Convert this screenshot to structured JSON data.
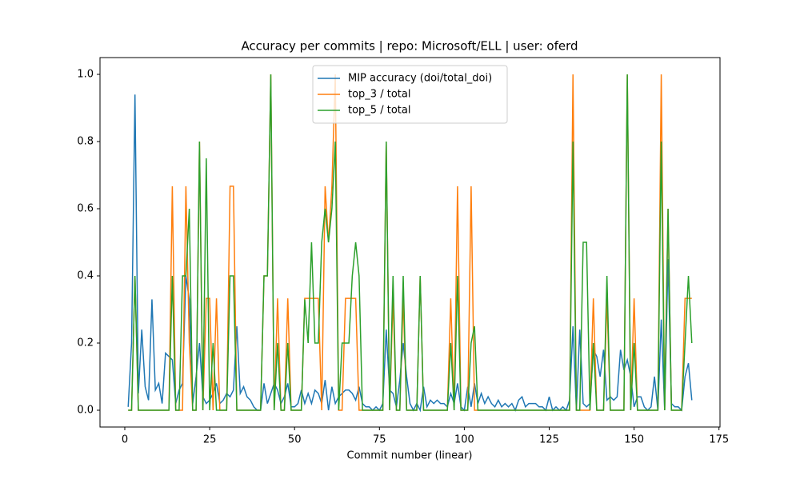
{
  "chart_data": {
    "type": "line",
    "title": "Accuracy per commits | repo: Microsoft/ELL | user: oferd",
    "xlabel": "Commit number (linear)",
    "xlim": [
      -7.3,
      175.3
    ],
    "xticks": [
      0,
      25,
      50,
      75,
      100,
      125,
      150,
      175
    ],
    "ylim": [
      -0.05,
      1.05
    ],
    "yticks": [
      {
        "value": 0,
        "label": "0.0"
      },
      0.2,
      0.4,
      0.6,
      0.8,
      {
        "value": 1,
        "label": "1.0"
      }
    ],
    "grid": false,
    "legend": "upper center",
    "x": [
      1,
      2,
      3,
      4,
      5,
      6,
      7,
      8,
      9,
      10,
      11,
      12,
      13,
      14,
      15,
      16,
      17,
      18,
      19,
      20,
      21,
      22,
      23,
      24,
      25,
      26,
      27,
      28,
      29,
      30,
      31,
      32,
      33,
      34,
      35,
      36,
      37,
      38,
      39,
      40,
      41,
      42,
      43,
      44,
      45,
      46,
      47,
      48,
      49,
      50,
      51,
      52,
      53,
      54,
      55,
      56,
      57,
      58,
      59,
      60,
      61,
      62,
      63,
      64,
      65,
      66,
      67,
      68,
      69,
      70,
      71,
      72,
      73,
      74,
      75,
      76,
      77,
      78,
      79,
      80,
      81,
      82,
      83,
      84,
      85,
      86,
      87,
      88,
      89,
      90,
      91,
      92,
      93,
      94,
      95,
      96,
      97,
      98,
      99,
      100,
      101,
      102,
      103,
      104,
      105,
      106,
      107,
      108,
      109,
      110,
      111,
      112,
      113,
      114,
      115,
      116,
      117,
      118,
      119,
      120,
      121,
      122,
      123,
      124,
      125,
      126,
      127,
      128,
      129,
      130,
      131,
      132,
      133,
      134,
      135,
      136,
      137,
      138,
      139,
      140,
      141,
      142,
      143,
      144,
      145,
      146,
      147,
      148,
      149,
      150,
      151,
      152,
      153,
      154,
      155,
      156,
      157,
      158,
      159,
      160,
      161,
      162,
      163,
      164,
      165,
      166,
      167
    ],
    "series": [
      {
        "name": "MIP accuracy (doi/total_doi)",
        "color": "#1f77b4",
        "values": [
          0.01,
          0.2,
          0.94,
          0.05,
          0.24,
          0.07,
          0.03,
          0.33,
          0.06,
          0.08,
          0.02,
          0.17,
          0.16,
          0.15,
          0.02,
          0.06,
          0.08,
          0.4,
          0.33,
          0.02,
          0.1,
          0.2,
          0.04,
          0.02,
          0.03,
          0.05,
          0.08,
          0.02,
          0.03,
          0.05,
          0.04,
          0.06,
          0.25,
          0.05,
          0.07,
          0.04,
          0.03,
          0.01,
          0,
          0,
          0.08,
          0.02,
          0.05,
          0.08,
          0.06,
          0.02,
          0.04,
          0.08,
          0.01,
          0.01,
          0.02,
          0.06,
          0.02,
          0.05,
          0.02,
          0.06,
          0.05,
          0.02,
          0.09,
          0,
          0.07,
          0.02,
          0.04,
          0.05,
          0.06,
          0.06,
          0.05,
          0.03,
          0.07,
          0.02,
          0.01,
          0.01,
          0,
          0.01,
          0,
          0.02,
          0.24,
          0.06,
          0.05,
          0.01,
          0.09,
          0.2,
          0.1,
          0.02,
          0,
          0.02,
          0,
          0.07,
          0.01,
          0.03,
          0.02,
          0.03,
          0.02,
          0.02,
          0.01,
          0.05,
          0.02,
          0.08,
          0.01,
          0,
          0.07,
          0.01,
          0.08,
          0.02,
          0.05,
          0.02,
          0.04,
          0.02,
          0.01,
          0.03,
          0.01,
          0.02,
          0.01,
          0.02,
          0,
          0.03,
          0.04,
          0.01,
          0.02,
          0.02,
          0.02,
          0.01,
          0.01,
          0,
          0.04,
          0,
          0.01,
          0,
          0.01,
          0,
          0.03,
          0.25,
          0,
          0.24,
          0.02,
          0.01,
          0.02,
          0.18,
          0.16,
          0.1,
          0.18,
          0.03,
          0.04,
          0.03,
          0.04,
          0.18,
          0.12,
          0.15,
          0.1,
          0.01,
          0.04,
          0.04,
          0.01,
          0,
          0.01,
          0.1,
          0,
          0.27,
          0,
          0.45,
          0.02,
          0.01,
          0.01,
          0,
          0.1,
          0.14,
          0.03
        ]
      },
      {
        "name": "top_3 / total",
        "color": "#ff7f0e",
        "values": [
          0,
          0,
          0.4,
          0,
          0,
          0,
          0,
          0,
          0,
          0,
          0,
          0,
          0,
          0.667,
          0,
          0,
          0,
          0.667,
          0.2,
          0,
          0,
          0.8,
          0,
          0.333,
          0.333,
          0,
          0.333,
          0,
          0,
          0,
          0.667,
          0.667,
          0,
          0,
          0,
          0,
          0,
          0,
          0,
          0,
          0.4,
          0.4,
          1,
          0,
          0.333,
          0,
          0,
          0.333,
          0,
          0,
          0,
          0,
          0.333,
          0.333,
          0.333,
          0.333,
          0.333,
          0,
          0.667,
          0.5,
          0.667,
          1,
          0,
          0,
          0.333,
          0.333,
          0.333,
          0.333,
          0,
          0,
          0,
          0,
          0,
          0,
          0,
          0,
          0.8,
          0,
          0.333,
          0,
          0,
          0.333,
          0,
          0,
          0,
          0,
          0.4,
          0,
          0,
          0,
          0,
          0,
          0,
          0,
          0,
          0.333,
          0,
          0.667,
          0,
          0,
          0,
          0.667,
          0,
          0,
          0,
          0,
          0,
          0,
          0,
          0,
          0,
          0,
          0,
          0,
          0,
          0,
          0,
          0,
          0,
          0,
          0,
          0,
          0,
          0,
          0,
          0,
          0,
          0,
          0,
          0,
          0,
          1,
          0,
          0,
          0,
          0,
          0,
          0.333,
          0,
          0,
          0,
          0.333,
          0,
          0,
          0,
          0,
          0,
          1,
          0,
          0.333,
          0,
          0,
          0,
          0,
          0,
          0,
          0,
          1,
          0,
          0.6,
          0,
          0,
          0,
          0,
          0.333,
          0.333,
          0.333
        ]
      },
      {
        "name": "top_5 / total",
        "color": "#2ca02c",
        "values": [
          0,
          0,
          0.4,
          0,
          0,
          0,
          0,
          0,
          0,
          0,
          0,
          0,
          0,
          0.4,
          0,
          0,
          0.4,
          0.4,
          0.6,
          0,
          0,
          0.8,
          0,
          0.75,
          0,
          0.2,
          0,
          0,
          0,
          0,
          0.4,
          0.4,
          0,
          0,
          0,
          0,
          0,
          0,
          0,
          0,
          0.4,
          0.4,
          1,
          0,
          0.2,
          0,
          0,
          0.2,
          0,
          0,
          0,
          0,
          0.33,
          0.2,
          0.5,
          0.2,
          0.2,
          0.5,
          0.6,
          0.5,
          0.6,
          0.8,
          0,
          0.2,
          0.2,
          0.2,
          0.4,
          0.5,
          0.4,
          0,
          0,
          0,
          0,
          0,
          0,
          0,
          0.8,
          0,
          0.4,
          0,
          0,
          0.4,
          0,
          0,
          0,
          0,
          0.4,
          0,
          0,
          0,
          0,
          0,
          0,
          0,
          0,
          0.2,
          0,
          0.4,
          0,
          0,
          0,
          0.2,
          0.25,
          0,
          0,
          0,
          0,
          0,
          0,
          0,
          0,
          0,
          0,
          0,
          0,
          0,
          0,
          0,
          0,
          0,
          0,
          0,
          0,
          0,
          0,
          0,
          0,
          0,
          0,
          0,
          0,
          0.8,
          0,
          0,
          0.5,
          0.5,
          0,
          0.2,
          0,
          0,
          0,
          0.4,
          0,
          0,
          0,
          0,
          0,
          1,
          0,
          0.2,
          0,
          0,
          0,
          0,
          0,
          0,
          0,
          0.8,
          0,
          0.6,
          0,
          0,
          0,
          0,
          0.2,
          0.4,
          0.2
        ]
      }
    ]
  }
}
